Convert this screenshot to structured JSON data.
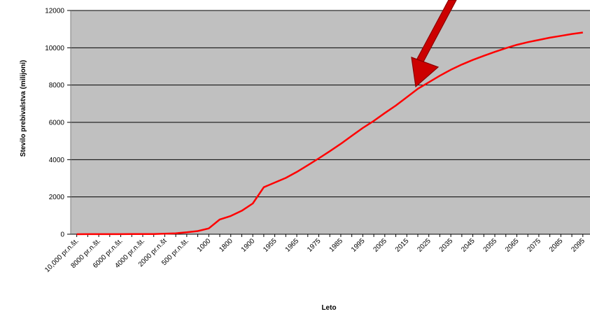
{
  "chart_data": {
    "type": "line",
    "xlabel": "Leto",
    "ylabel": "Stevilo prebivalstva  (milijoni)",
    "ylim": [
      0,
      12000
    ],
    "yticks": [
      0,
      2000,
      4000,
      6000,
      8000,
      10000,
      12000
    ],
    "grid": true,
    "colors": {
      "plot_background": "#c0c0c0",
      "series_line": "#ff0000",
      "gridline": "#000000",
      "arrow": "#cc0000"
    },
    "categories": [
      "10,000 pr.n.št.",
      "",
      "8000 pr.n.št.",
      "",
      "6000 pr.n.št.",
      "",
      "4000 pr.n.št.",
      "",
      "2000 pr.n.št",
      "",
      "500 pr.n.št.",
      "",
      "1000",
      "",
      "1800",
      "",
      "1900",
      "",
      "1955",
      "",
      "1965",
      "",
      "1975",
      "",
      "1985",
      "",
      "1995",
      "",
      "2005",
      "",
      "2015",
      "",
      "2025",
      "",
      "2035",
      "",
      "2045",
      "",
      "2055",
      "",
      "2065",
      "",
      "2075",
      "",
      "2085",
      "",
      "2095"
    ],
    "series": [
      {
        "values": [
          1,
          2,
          3,
          4,
          5,
          6,
          7,
          10,
          27,
          50,
          100,
          170,
          310,
          790,
          980,
          1260,
          1650,
          2520,
          2770,
          3020,
          3340,
          3700,
          4070,
          4450,
          4850,
          5280,
          5700,
          6080,
          6500,
          6900,
          7350,
          7800,
          8150,
          8500,
          8820,
          9100,
          9350,
          9570,
          9780,
          9980,
          10160,
          10300,
          10420,
          10540,
          10640,
          10740,
          10820
        ]
      }
    ]
  }
}
